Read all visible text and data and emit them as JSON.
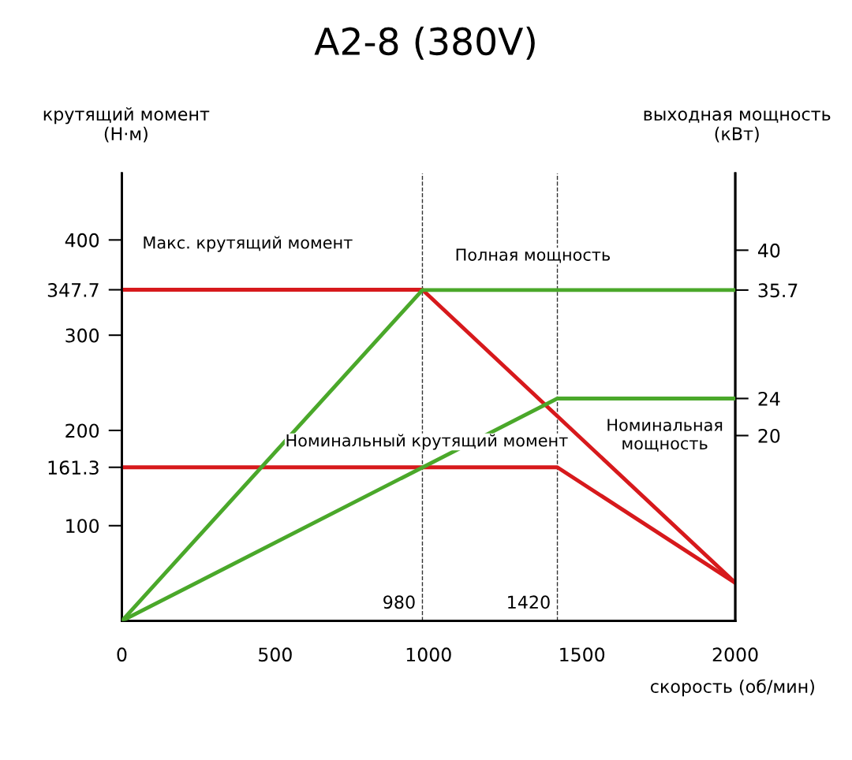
{
  "chart_data": {
    "type": "line",
    "title": "A2-8 (380V)",
    "xlabel": "скорость (об/мин)",
    "ylabel": "крутящий момент\n(Н·м)",
    "y2label": "выходная мощность\n(кВт)",
    "xlim": [
      0,
      2000
    ],
    "xticks": [
      0,
      500,
      1000,
      1500,
      2000
    ],
    "ylim": [
      0,
      470
    ],
    "yticks": [
      100,
      161.3,
      200,
      300,
      347.7,
      400
    ],
    "y2lim": [
      0,
      48.3
    ],
    "y2ticks": [
      20,
      24,
      35.7,
      40
    ],
    "grid": false,
    "legend": false,
    "marker": "none",
    "line_style": "solid",
    "series": [
      {
        "color": "#d7191c",
        "axis": "y",
        "x": [
          0,
          980,
          2000
        ],
        "values": [
          347.7,
          347.7,
          40
        ]
      },
      {
        "color": "#d7191c",
        "axis": "y",
        "x": [
          0,
          1420,
          2000
        ],
        "values": [
          161.3,
          161.3,
          40
        ]
      },
      {
        "color": "#4aa82a",
        "axis": "y2",
        "x": [
          0,
          980,
          2000
        ],
        "values": [
          0,
          35.7,
          35.7
        ]
      },
      {
        "color": "#4aa82a",
        "axis": "y2",
        "x": [
          0,
          1420,
          2000
        ],
        "values": [
          0,
          24,
          24
        ]
      }
    ],
    "ref_lines": [
      {
        "axis": "x",
        "value": 980,
        "label": "980",
        "color": "#333333",
        "line_style": "dashed"
      },
      {
        "axis": "x",
        "value": 1420,
        "label": "1420",
        "color": "#333333",
        "line_style": "dashed"
      }
    ],
    "annotations": [
      "Макс. крутящий момент",
      "Полная мощность",
      "Номинальный крутящий момент",
      "Номинальная\nмощность"
    ]
  }
}
